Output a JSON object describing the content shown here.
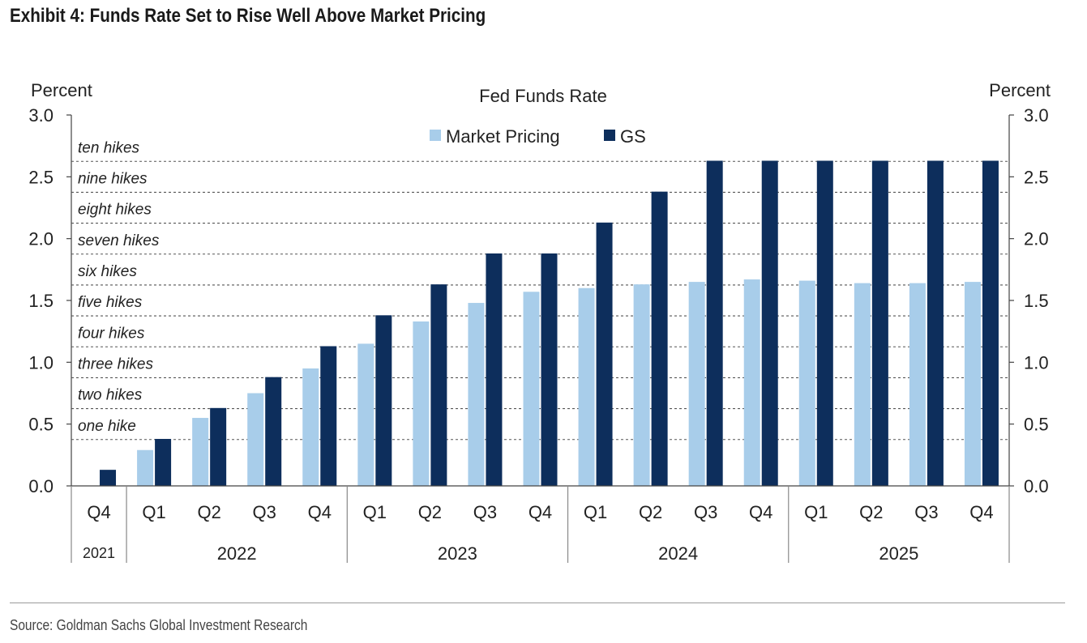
{
  "title": "Exhibit 4: Funds Rate Set to Rise Well Above Market Pricing",
  "source": "Source: Goldman Sachs Global Investment Research",
  "chart_data": {
    "type": "bar",
    "title": "Fed Funds Rate",
    "ylabel_left": "Percent",
    "ylabel_right": "Percent",
    "ylim": [
      0,
      3.0
    ],
    "yticks": [
      "0.0",
      "0.5",
      "1.0",
      "1.5",
      "2.0",
      "2.5",
      "3.0"
    ],
    "legend_position": "top-center",
    "categories": [
      "Q4",
      "Q1",
      "Q2",
      "Q3",
      "Q4",
      "Q1",
      "Q2",
      "Q3",
      "Q4",
      "Q1",
      "Q2",
      "Q3",
      "Q4",
      "Q1",
      "Q2",
      "Q3",
      "Q4"
    ],
    "years": [
      {
        "label": "2021",
        "count": 1
      },
      {
        "label": "2022",
        "count": 4
      },
      {
        "label": "2023",
        "count": 4
      },
      {
        "label": "2024",
        "count": 4
      },
      {
        "label": "2025",
        "count": 4
      }
    ],
    "series": [
      {
        "name": "Market Pricing",
        "color": "#a8cdea",
        "values": [
          null,
          0.29,
          0.55,
          0.75,
          0.95,
          1.15,
          1.33,
          1.48,
          1.57,
          1.6,
          1.63,
          1.65,
          1.67,
          1.66,
          1.64,
          1.64,
          1.65
        ]
      },
      {
        "name": "GS",
        "color": "#0d2e5c",
        "values": [
          0.13,
          0.38,
          0.63,
          0.88,
          1.13,
          1.38,
          1.63,
          1.88,
          1.88,
          2.13,
          2.38,
          2.63,
          2.63,
          2.63,
          2.63,
          2.63,
          2.63
        ]
      }
    ],
    "hike_lines": [
      {
        "label": "one hike",
        "value": 0.375
      },
      {
        "label": "two hikes",
        "value": 0.625
      },
      {
        "label": "three hikes",
        "value": 0.875
      },
      {
        "label": "four hikes",
        "value": 1.125
      },
      {
        "label": "five hikes",
        "value": 1.375
      },
      {
        "label": "six hikes",
        "value": 1.625
      },
      {
        "label": "seven hikes",
        "value": 1.875
      },
      {
        "label": "eight hikes",
        "value": 2.125
      },
      {
        "label": "nine hikes",
        "value": 2.375
      },
      {
        "label": "ten hikes",
        "value": 2.625
      }
    ]
  }
}
